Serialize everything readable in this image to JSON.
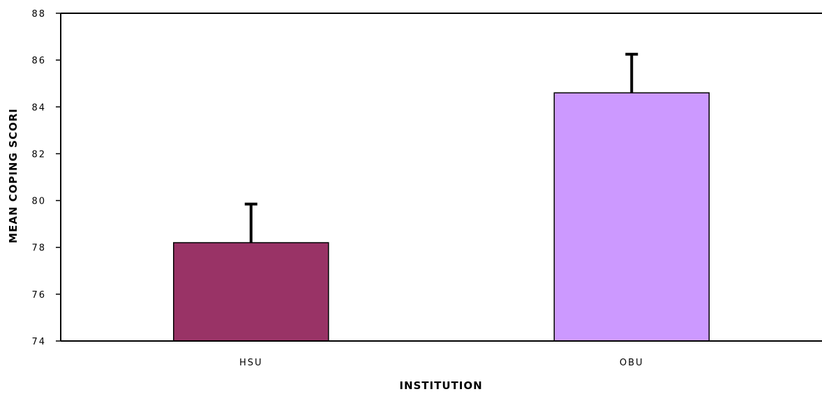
{
  "chart_data": {
    "type": "bar",
    "title": "",
    "xlabel": "INSTITUTION",
    "ylabel": "MEAN COPING SCORI",
    "ylim": [
      74,
      88
    ],
    "yticks": [
      74,
      76,
      78,
      80,
      82,
      84,
      86,
      88
    ],
    "categories": [
      "HSU",
      "OBU"
    ],
    "values": [
      78.2,
      84.6
    ],
    "error_plus": [
      1.65,
      1.65
    ],
    "bar_colors": [
      "#993366",
      "#CC99FF"
    ],
    "grid": false,
    "legend": "none"
  }
}
